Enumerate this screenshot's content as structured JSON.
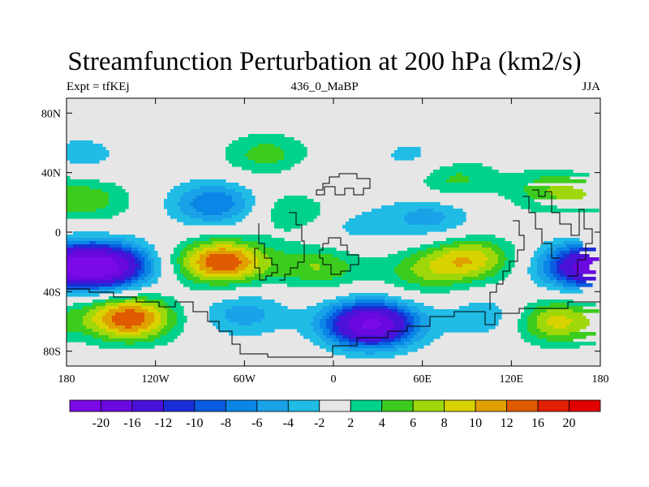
{
  "header": {
    "title": "Streamfunction Perturbation at 200 hPa (km2/s)",
    "left_label": "Expt = tfKEj",
    "center_label": "436_0_MaBP",
    "right_label": "JJA"
  },
  "chart_data": {
    "type": "heatmap",
    "projection": "cylindrical-equidistant",
    "xlim": [
      -180,
      180
    ],
    "ylim": [
      -90,
      90
    ],
    "x_ticks": [
      {
        "value": -180,
        "label": "180"
      },
      {
        "value": -120,
        "label": "120W"
      },
      {
        "value": -60,
        "label": "60W"
      },
      {
        "value": 0,
        "label": "0"
      },
      {
        "value": 60,
        "label": "60E"
      },
      {
        "value": 120,
        "label": "120E"
      },
      {
        "value": 180,
        "label": "180"
      }
    ],
    "y_ticks": [
      {
        "value": 80,
        "label": "80N"
      },
      {
        "value": 40,
        "label": "40N"
      },
      {
        "value": 0,
        "label": "0"
      },
      {
        "value": -40,
        "label": "40S"
      },
      {
        "value": -80,
        "label": "80S"
      }
    ],
    "colorbar": {
      "levels": [
        "-20",
        "-16",
        "-12",
        "-10",
        "-8",
        "-6",
        "-4",
        "-2",
        "2",
        "4",
        "6",
        "8",
        "10",
        "12",
        "16",
        "20"
      ],
      "colors": [
        "#7a0ae6",
        "#6a08e0",
        "#4a12d8",
        "#1a2ed6",
        "#0a5ce0",
        "#0a86e6",
        "#1aa2e8",
        "#20bce6",
        "#e6e6e6",
        "#00d28c",
        "#3ccc1e",
        "#9ed80a",
        "#d8d200",
        "#e0a000",
        "#e05a00",
        "#e02000",
        "#e00000"
      ]
    },
    "background_color": "#e6e6e6",
    "anomalies": [
      {
        "lon": -155,
        "lat": -23,
        "value": -21
      },
      {
        "lon": 168,
        "lat": -23,
        "value": -14
      },
      {
        "lon": -138,
        "lat": -58,
        "value": 14
      },
      {
        "lon": -75,
        "lat": -20,
        "value": 14
      },
      {
        "lon": -10,
        "lat": -23,
        "value": 6
      },
      {
        "lon": 92,
        "lat": -18,
        "value": 9
      },
      {
        "lon": 60,
        "lat": -27,
        "value": 5
      },
      {
        "lon": 150,
        "lat": -60,
        "value": 9
      },
      {
        "lon": 25,
        "lat": -62,
        "value": -21
      },
      {
        "lon": -60,
        "lat": -55,
        "value": -5
      },
      {
        "lon": 105,
        "lat": -57,
        "value": -4
      },
      {
        "lon": -80,
        "lat": 19,
        "value": -8
      },
      {
        "lon": -165,
        "lat": 22,
        "value": 5
      },
      {
        "lon": -25,
        "lat": 15,
        "value": 5
      },
      {
        "lon": -45,
        "lat": 52,
        "value": 5
      },
      {
        "lon": 10,
        "lat": 4,
        "value": -3
      },
      {
        "lon": 80,
        "lat": 36,
        "value": 5
      },
      {
        "lon": 65,
        "lat": 10,
        "value": -5
      },
      {
        "lon": 55,
        "lat": 50,
        "value": -3
      },
      {
        "lon": 150,
        "lat": 28,
        "value": 6
      },
      {
        "lon": -10,
        "lat": 33,
        "value": -2
      },
      {
        "lon": -170,
        "lat": 52,
        "value": -3
      }
    ]
  }
}
